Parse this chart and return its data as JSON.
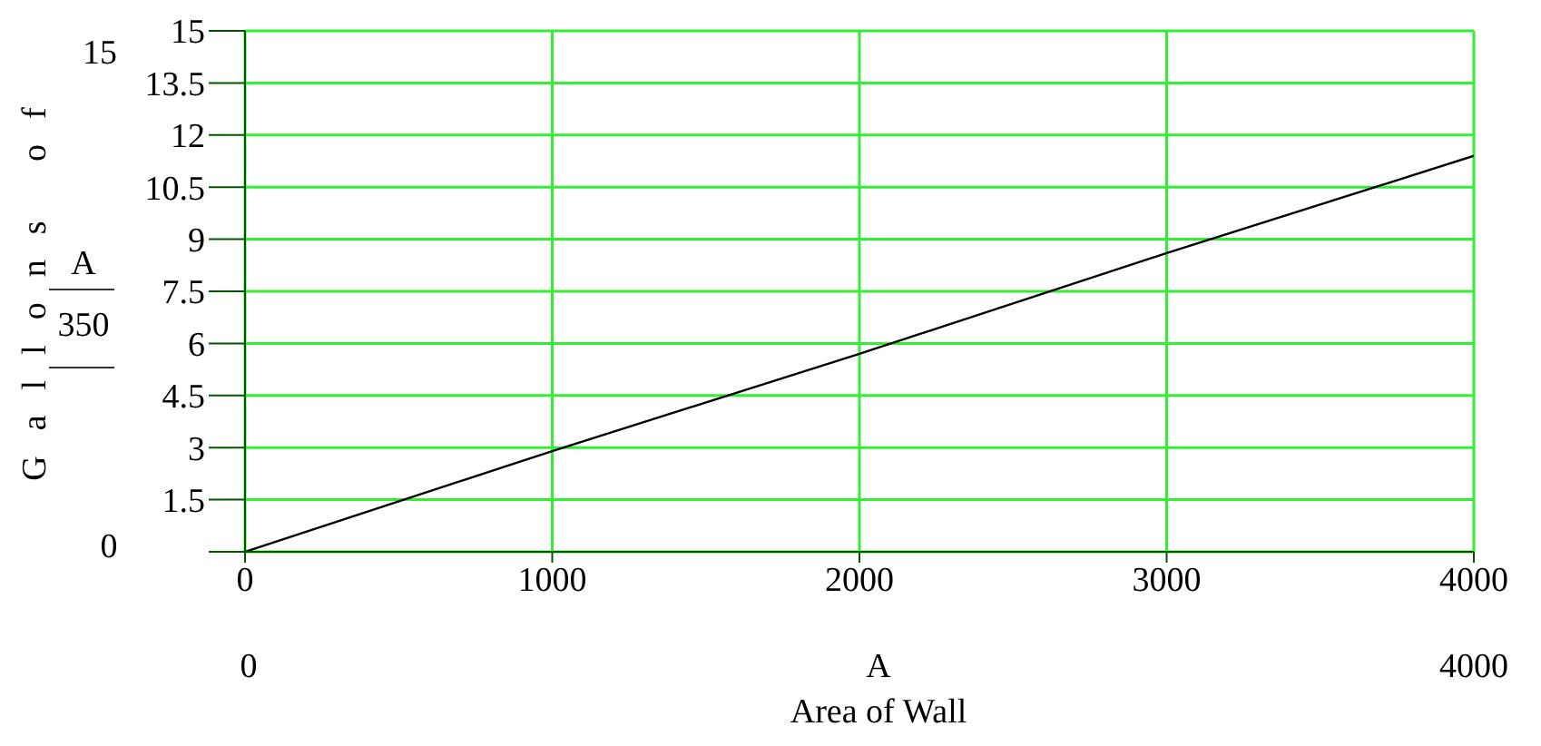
{
  "chart_data": {
    "type": "line",
    "xlabel": "Area of Wall",
    "ylabel": "Gallons of",
    "annotations": [
      "15",
      "A",
      "350",
      "0",
      "0",
      "A",
      "4000"
    ],
    "x": [
      0,
      1000,
      2000,
      3000,
      4000
    ],
    "series": [
      {
        "color": "#000000",
        "values": [
          0,
          2.9,
          5.7,
          8.6,
          11.4
        ]
      }
    ],
    "xlim": [
      0,
      4000
    ],
    "xticks": [
      0,
      1000,
      2000,
      3000,
      4000
    ],
    "ylim": [
      0,
      15
    ],
    "yticks": [
      {
        "value": 0,
        "label": null
      },
      1.5,
      3,
      4.5,
      6,
      7.5,
      9,
      10.5,
      12,
      13.5,
      15
    ],
    "grid": true,
    "marker": "none",
    "line_style": "solid",
    "legend": false
  }
}
